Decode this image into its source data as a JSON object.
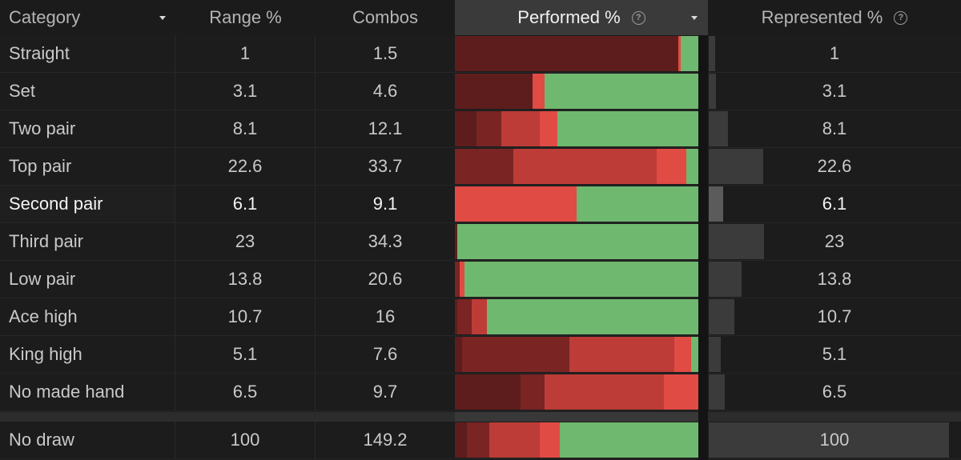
{
  "header": {
    "category": "Category",
    "range": "Range %",
    "combos": "Combos",
    "performed": "Performed %",
    "represented": "Represented %",
    "help_glyph": "?"
  },
  "colors": {
    "dark_red": "#5e1d1d",
    "mid_red": "#7a2424",
    "red": "#bd3c37",
    "bright_red": "#e04b44",
    "green": "#6fb86f",
    "rep_bar": "#3b3b3b"
  },
  "rows": [
    {
      "category": "Straight",
      "range": "1",
      "combos": "1.5",
      "represented": "1",
      "rep_fraction": 0.01,
      "performed": [
        {
          "c": "dark_red",
          "v": 91
        },
        {
          "c": "bright_red",
          "v": 1
        },
        {
          "c": "green",
          "v": 7
        }
      ]
    },
    {
      "category": "Set",
      "range": "3.1",
      "combos": "4.6",
      "represented": "3.1",
      "rep_fraction": 0.031,
      "performed": [
        {
          "c": "dark_red",
          "v": 32
        },
        {
          "c": "bright_red",
          "v": 5
        },
        {
          "c": "green",
          "v": 63
        }
      ]
    },
    {
      "category": "Two pair",
      "range": "8.1",
      "combos": "12.1",
      "represented": "8.1",
      "rep_fraction": 0.081,
      "performed": [
        {
          "c": "dark_red",
          "v": 9
        },
        {
          "c": "mid_red",
          "v": 10
        },
        {
          "c": "red",
          "v": 16
        },
        {
          "c": "bright_red",
          "v": 7
        },
        {
          "c": "green",
          "v": 58
        }
      ]
    },
    {
      "category": "Top pair",
      "range": "22.6",
      "combos": "33.7",
      "represented": "22.6",
      "rep_fraction": 0.226,
      "performed": [
        {
          "c": "mid_red",
          "v": 24
        },
        {
          "c": "red",
          "v": 59
        },
        {
          "c": "bright_red",
          "v": 12
        },
        {
          "c": "green",
          "v": 5
        }
      ]
    },
    {
      "category": "Second pair",
      "range": "6.1",
      "combos": "9.1",
      "represented": "6.1",
      "rep_fraction": 0.061,
      "highlight": true,
      "performed": [
        {
          "c": "bright_red",
          "v": 50
        },
        {
          "c": "green",
          "v": 50
        }
      ]
    },
    {
      "category": "Third pair",
      "range": "23",
      "combos": "34.3",
      "represented": "23",
      "rep_fraction": 0.23,
      "performed": [
        {
          "c": "dark_red",
          "v": 1
        },
        {
          "c": "green",
          "v": 99
        }
      ]
    },
    {
      "category": "Low pair",
      "range": "13.8",
      "combos": "20.6",
      "represented": "13.8",
      "rep_fraction": 0.138,
      "performed": [
        {
          "c": "mid_red",
          "v": 2
        },
        {
          "c": "bright_red",
          "v": 2
        },
        {
          "c": "green",
          "v": 96
        }
      ]
    },
    {
      "category": "Ace high",
      "range": "10.7",
      "combos": "16",
      "represented": "10.7",
      "rep_fraction": 0.107,
      "performed": [
        {
          "c": "dark_red",
          "v": 1
        },
        {
          "c": "mid_red",
          "v": 6
        },
        {
          "c": "red",
          "v": 6
        },
        {
          "c": "green",
          "v": 87
        }
      ]
    },
    {
      "category": "King high",
      "range": "5.1",
      "combos": "7.6",
      "represented": "5.1",
      "rep_fraction": 0.051,
      "performed": [
        {
          "c": "dark_red",
          "v": 3
        },
        {
          "c": "mid_red",
          "v": 44
        },
        {
          "c": "red",
          "v": 43
        },
        {
          "c": "bright_red",
          "v": 7
        },
        {
          "c": "green",
          "v": 3
        }
      ]
    },
    {
      "category": "No made hand",
      "range": "6.5",
      "combos": "9.7",
      "represented": "6.5",
      "rep_fraction": 0.065,
      "performed": [
        {
          "c": "dark_red",
          "v": 27
        },
        {
          "c": "mid_red",
          "v": 10
        },
        {
          "c": "red",
          "v": 49
        },
        {
          "c": "bright_red",
          "v": 14
        }
      ]
    }
  ],
  "total": {
    "category": "No draw",
    "range": "100",
    "combos": "149.2",
    "represented": "100",
    "rep_fraction": 1.0,
    "performed": [
      {
        "c": "dark_red",
        "v": 5
      },
      {
        "c": "mid_red",
        "v": 9
      },
      {
        "c": "red",
        "v": 21
      },
      {
        "c": "bright_red",
        "v": 8
      },
      {
        "c": "green",
        "v": 57
      }
    ]
  }
}
